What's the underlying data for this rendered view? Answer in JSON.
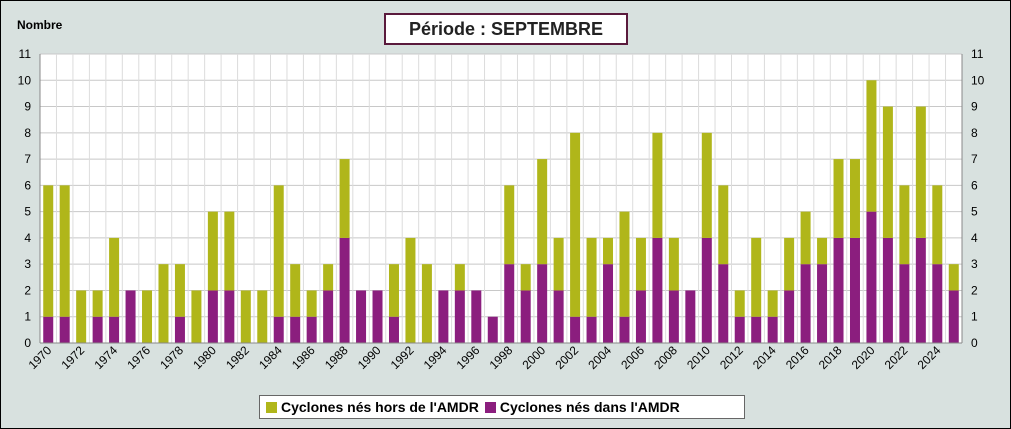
{
  "chart_data": {
    "type": "bar",
    "stacked": true,
    "title": "Période : SEPTEMBRE",
    "ylabel": "Nombre",
    "ylim": [
      0,
      11
    ],
    "yticks": [
      0,
      1,
      2,
      3,
      4,
      5,
      6,
      7,
      8,
      9,
      10,
      11
    ],
    "grid": true,
    "legend_position": "bottom",
    "categories": [
      "1970",
      "1971",
      "1972",
      "1973",
      "1974",
      "1975",
      "1976",
      "1977",
      "1978",
      "1979",
      "1980",
      "1981",
      "1982",
      "1983",
      "1984",
      "1985",
      "1986",
      "1987",
      "1988",
      "1989",
      "1990",
      "1991",
      "1992",
      "1993",
      "1994",
      "1995",
      "1996",
      "1997",
      "1998",
      "1999",
      "2000",
      "2001",
      "2002",
      "2003",
      "2004",
      "2005",
      "2006",
      "2007",
      "2008",
      "2009",
      "2010",
      "2011",
      "2012",
      "2013",
      "2014",
      "2015",
      "2016",
      "2017",
      "2018",
      "2019",
      "2020",
      "2021",
      "2022",
      "2023",
      "2024",
      "2025"
    ],
    "xtick_labels": [
      "1970",
      "1972",
      "1974",
      "1976",
      "1978",
      "1980",
      "1982",
      "1984",
      "1986",
      "1988",
      "1990",
      "1992",
      "1994",
      "1996",
      "1998",
      "2000",
      "2002",
      "2004",
      "2006",
      "2008",
      "2010",
      "2012",
      "2014",
      "2016",
      "2018",
      "2020",
      "2022",
      "2024"
    ],
    "series": [
      {
        "name": "Cyclones nés dans l'AMDR",
        "color": "#8b1e7e",
        "values": [
          1,
          1,
          0,
          1,
          1,
          2,
          0,
          0,
          1,
          0,
          2,
          2,
          0,
          0,
          1,
          1,
          1,
          2,
          4,
          2,
          2,
          1,
          0,
          0,
          2,
          2,
          2,
          1,
          3,
          2,
          3,
          2,
          1,
          1,
          3,
          1,
          2,
          4,
          2,
          2,
          4,
          3,
          1,
          1,
          1,
          2,
          3,
          3,
          4,
          4,
          5,
          4,
          3,
          4,
          3,
          2
        ]
      },
      {
        "name": "Cyclones nés hors de l'AMDR",
        "color": "#b0b61a",
        "values": [
          5,
          5,
          2,
          1,
          3,
          0,
          2,
          3,
          2,
          2,
          3,
          3,
          2,
          2,
          5,
          2,
          1,
          1,
          3,
          0,
          0,
          2,
          4,
          3,
          0,
          1,
          0,
          0,
          3,
          1,
          4,
          2,
          7,
          3,
          1,
          4,
          2,
          4,
          2,
          0,
          4,
          3,
          1,
          3,
          1,
          2,
          2,
          1,
          3,
          3,
          5,
          5,
          3,
          5,
          3,
          1
        ]
      }
    ]
  },
  "legend": {
    "outside_label": "Cyclones nés hors de l'AMDR",
    "inside_label": "Cyclones nés dans l'AMDR"
  }
}
